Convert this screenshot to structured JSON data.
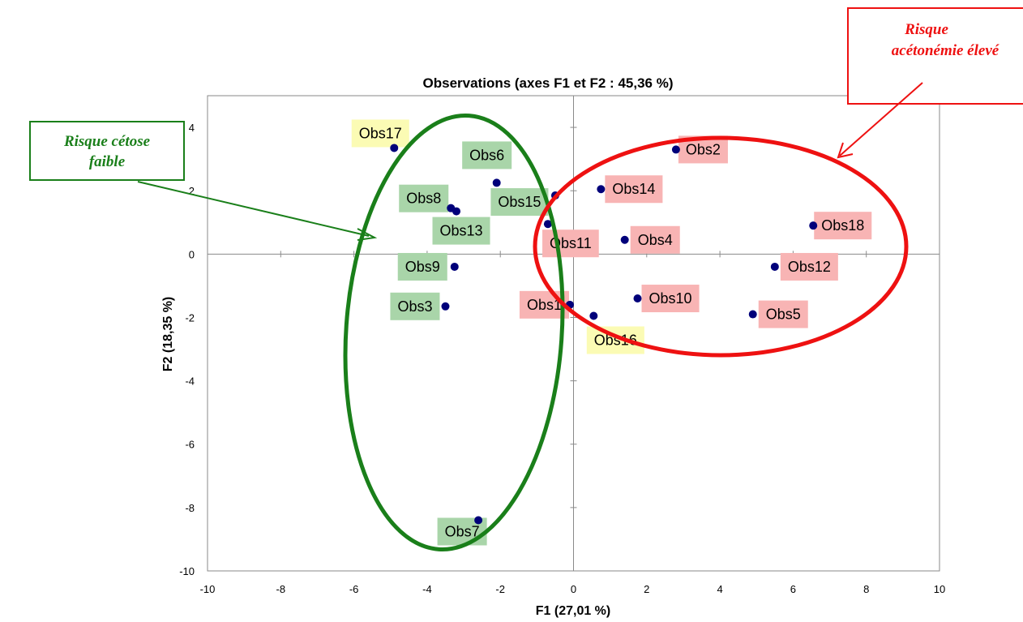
{
  "chart_data": {
    "type": "scatter",
    "title": "Observations (axes F1 et F2 : 45,36 %)",
    "xlabel": "F1 (27,01 %)",
    "ylabel": "F2 (18,35 %)",
    "xlim": [
      -10,
      10
    ],
    "ylim": [
      -10,
      5
    ],
    "x_ticks": [
      -10,
      -8,
      -6,
      -4,
      -2,
      0,
      2,
      4,
      6,
      8,
      10
    ],
    "y_ticks": [
      -10,
      -8,
      -6,
      -4,
      -2,
      0,
      2,
      4
    ],
    "grid": false,
    "marker_color": "#00007a",
    "points": [
      {
        "label": "Obs1",
        "x": -0.1,
        "y": -1.6,
        "group": "high"
      },
      {
        "label": "Obs2",
        "x": 2.8,
        "y": 3.3,
        "group": "high"
      },
      {
        "label": "Obs3",
        "x": -3.5,
        "y": -1.65,
        "group": "low"
      },
      {
        "label": "Obs4",
        "x": 1.4,
        "y": 0.45,
        "group": "high"
      },
      {
        "label": "Obs5",
        "x": 4.9,
        "y": -1.9,
        "group": "high"
      },
      {
        "label": "Obs6",
        "x": -2.1,
        "y": 2.25,
        "group": "low"
      },
      {
        "label": "Obs7",
        "x": -2.6,
        "y": -8.4,
        "group": "low"
      },
      {
        "label": "Obs8",
        "x": -3.35,
        "y": 1.45,
        "group": "low"
      },
      {
        "label": "Obs9",
        "x": -3.25,
        "y": -0.4,
        "group": "low"
      },
      {
        "label": "Obs10",
        "x": 1.75,
        "y": -1.4,
        "group": "high"
      },
      {
        "label": "Obs11",
        "x": -0.7,
        "y": 0.95,
        "group": "high"
      },
      {
        "label": "Obs12",
        "x": 5.5,
        "y": -0.4,
        "group": "high"
      },
      {
        "label": "Obs13",
        "x": -3.2,
        "y": 1.35,
        "group": "low"
      },
      {
        "label": "Obs14",
        "x": 0.75,
        "y": 2.05,
        "group": "high"
      },
      {
        "label": "Obs15",
        "x": -0.5,
        "y": 1.85,
        "group": "low"
      },
      {
        "label": "Obs16",
        "x": 0.55,
        "y": -1.95,
        "group": "neutral"
      },
      {
        "label": "Obs17",
        "x": -4.9,
        "y": 3.35,
        "group": "neutral"
      },
      {
        "label": "Obs18",
        "x": 6.55,
        "y": 0.9,
        "group": "high"
      }
    ],
    "group_colors": {
      "high": "#f8b4b4",
      "low": "#a9d5a9",
      "neutral": "#fbfbb4"
    }
  },
  "annotations": {
    "low_risk": {
      "line1": "Risque cétose",
      "line2": "faible",
      "color": "#1a7f1a"
    },
    "high_risk": {
      "line1": "Risque",
      "line2": "acétonémie élevé",
      "color": "#ee1111"
    }
  }
}
